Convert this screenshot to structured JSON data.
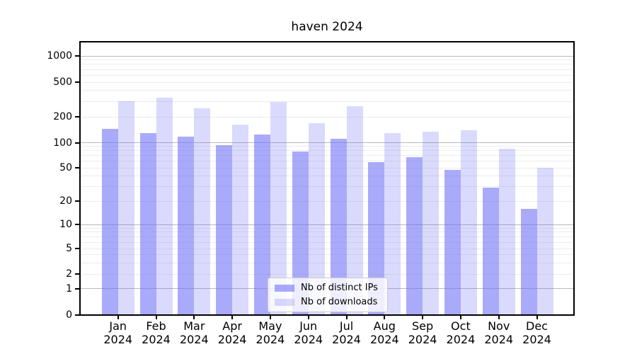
{
  "chart_data": {
    "type": "bar",
    "title": "haven 2024",
    "categories": [
      "Jan 2024",
      "Feb 2024",
      "Mar 2024",
      "Apr 2024",
      "May 2024",
      "Jun 2024",
      "Jul 2024",
      "Aug 2024",
      "Sep 2024",
      "Oct 2024",
      "Nov 2024",
      "Dec 2024"
    ],
    "series": [
      {
        "name": "Nb of distinct IPs",
        "color": "#6c6cf8",
        "alpha": 0.58,
        "values": [
          145,
          130,
          117,
          93,
          124,
          78,
          110,
          58,
          67,
          47,
          29,
          16
        ]
      },
      {
        "name": "Nb of downloads",
        "color": "#6c6cf8",
        "alpha": 0.25,
        "values": [
          300,
          330,
          250,
          163,
          295,
          170,
          265,
          130,
          135,
          140,
          85,
          50
        ]
      }
    ],
    "xlabel": "",
    "ylabel": "",
    "yscale": "symlog",
    "ylim": [
      0,
      1400
    ],
    "y_ticks": [
      0,
      1,
      2,
      5,
      10,
      20,
      50,
      100,
      200,
      500,
      1000
    ],
    "major_gridlines": [
      1,
      10,
      100,
      1000
    ],
    "minor_gridlines": [
      2,
      3,
      4,
      5,
      6,
      7,
      8,
      9,
      20,
      30,
      40,
      50,
      60,
      70,
      80,
      90,
      200,
      300,
      400,
      500,
      600,
      700,
      800,
      900
    ],
    "grid": "on",
    "legend_position": "lower center, inside axes"
  }
}
